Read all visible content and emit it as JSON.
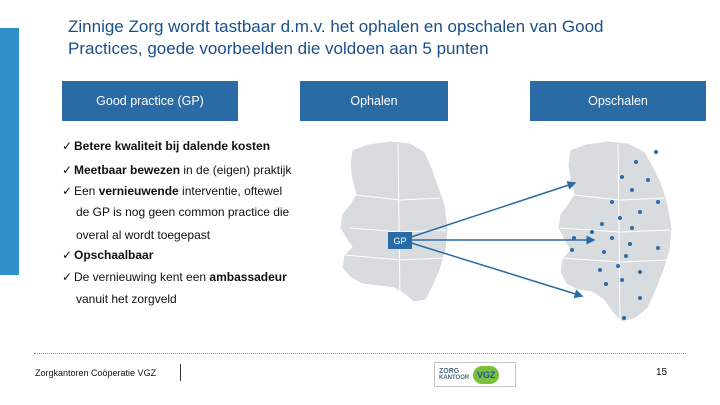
{
  "title_line1": "Zinnige Zorg wordt tastbaar d.m.v. het ophalen en opschalen van Good",
  "title_line2": "Practices, goede voorbeelden die voldoen aan 5 punten",
  "pills": {
    "good_practice": "Good practice (GP)",
    "ophalen": "Ophalen",
    "opschalen": "Opschalen"
  },
  "criteria": [
    {
      "bold": "Betere kwaliteit bij dalende kosten",
      "rest": ""
    },
    {
      "bold": "Meetbaar bewezen",
      "rest": " in de (eigen) praktijk"
    },
    {
      "pre": "Een ",
      "bold": "vernieuwende",
      "rest": " interventie, oftewel"
    },
    {
      "bold": "Opschaalbaar",
      "rest": ""
    },
    {
      "pre": "De vernieuwing kent een ",
      "bold": "ambassadeur",
      "rest": ""
    }
  ],
  "criteria_sub": {
    "line1": "de GP is nog geen common practice die",
    "line2": "overal al wordt toegepast",
    "line3": "vanuit het zorgveld"
  },
  "map_label": "GP",
  "footer": {
    "org": "Zorgkantoren Coöperatie VGZ",
    "logo_zorg": "ZORG",
    "logo_sub": "KANTOOR",
    "logo_vgz": "VGZ",
    "page": "15"
  },
  "colors": {
    "accent": "#2e8fc9",
    "pill": "#2a6ba5",
    "title": "#1a4f8b",
    "map": "#d9dcdf",
    "dot": "#2a6ba5"
  }
}
